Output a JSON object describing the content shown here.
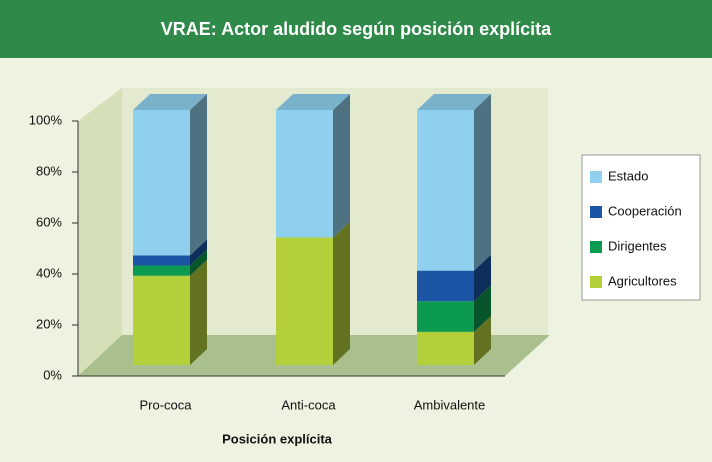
{
  "chart_data": {
    "type": "bar3d_stacked",
    "title": "VRAE: Actor aludido según posición explícita",
    "x_label": "Posición explícita",
    "categories": [
      "Pro-coca",
      "Anti-coca",
      "Ambivalente"
    ],
    "series": [
      {
        "name": "Agricultores",
        "color": "#b3cf3a",
        "values": [
          35,
          50,
          13
        ]
      },
      {
        "name": "Dirigentes",
        "color": "#0b9a4f",
        "values": [
          4,
          0,
          12
        ]
      },
      {
        "name": "Cooperación",
        "color": "#1a55a6",
        "values": [
          4,
          0,
          12
        ]
      },
      {
        "name": "Estado",
        "color": "#8fd0ef",
        "values": [
          57,
          50,
          63
        ]
      }
    ],
    "ylim": [
      0,
      100
    ],
    "yticks": [
      {
        "value": 0,
        "label": "0%"
      },
      {
        "value": 20,
        "label": "20%"
      },
      {
        "value": 40,
        "label": "40%"
      },
      {
        "value": 60,
        "label": "60%"
      },
      {
        "value": 80,
        "label": "80%"
      },
      {
        "value": 100,
        "label": "100%"
      }
    ],
    "grid": false,
    "legend": "right"
  }
}
